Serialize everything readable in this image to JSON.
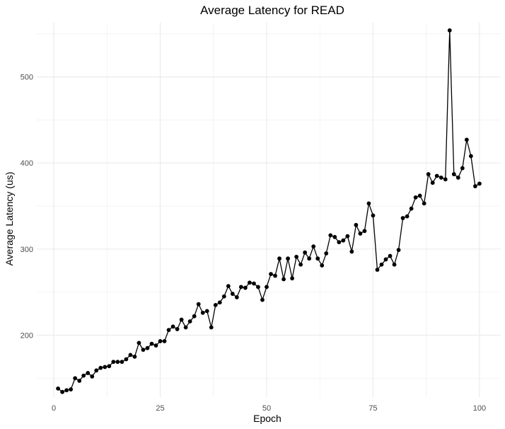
{
  "chart_data": {
    "type": "line",
    "title": "Average Latency for READ",
    "xlabel": "Epoch",
    "ylabel": "Average Latency (us)",
    "xlim": [
      -4,
      105
    ],
    "ylim": [
      128,
      563
    ],
    "x_ticks": [
      0,
      25,
      50,
      75,
      100
    ],
    "y_ticks": [
      200,
      300,
      400,
      500
    ],
    "grid": true,
    "legend": "none",
    "colors": {
      "line": "#000000",
      "point": "#000000",
      "grid": "#ebebeb",
      "background": "#ffffff"
    },
    "series": [
      {
        "x": [
          1,
          2,
          3,
          4,
          5,
          6,
          7,
          8,
          9,
          10,
          11,
          12,
          13,
          14,
          15,
          16,
          17,
          18,
          19,
          20,
          21,
          22,
          23,
          24,
          25,
          26,
          27,
          28,
          29,
          30,
          31,
          32,
          33,
          34,
          35,
          36,
          37,
          38,
          39,
          40,
          41,
          42,
          43,
          44,
          45,
          46,
          47,
          48,
          49,
          50,
          51,
          52,
          53,
          54,
          55,
          56,
          57,
          58,
          59,
          60,
          61,
          62,
          63,
          64,
          65,
          66,
          67,
          68,
          69,
          70,
          71,
          72,
          73,
          74,
          75,
          76,
          77,
          78,
          79,
          80,
          81,
          82,
          83,
          84,
          85,
          86,
          87,
          88,
          89,
          90,
          91,
          92,
          93,
          94,
          95,
          96,
          97,
          98,
          99,
          100
        ],
        "y": [
          138,
          134,
          136,
          137,
          150,
          147,
          153,
          156,
          152,
          159,
          162,
          163,
          164,
          169,
          169,
          169,
          172,
          177,
          175,
          191,
          183,
          185,
          190,
          188,
          193,
          193,
          206,
          210,
          207,
          218,
          209,
          216,
          222,
          236,
          226,
          228,
          209,
          235,
          238,
          245,
          257,
          248,
          244,
          256,
          255,
          261,
          260,
          256,
          241,
          256,
          271,
          269,
          289,
          265,
          289,
          266,
          291,
          282,
          296,
          289,
          303,
          289,
          281,
          295,
          316,
          314,
          308,
          310,
          315,
          297,
          328,
          318,
          321,
          353,
          339,
          276,
          282,
          288,
          292,
          282,
          299,
          336,
          338,
          347,
          360,
          362,
          353,
          387,
          377,
          385,
          383,
          381,
          554,
          387,
          383,
          394,
          427,
          408,
          373,
          376
        ]
      }
    ]
  }
}
